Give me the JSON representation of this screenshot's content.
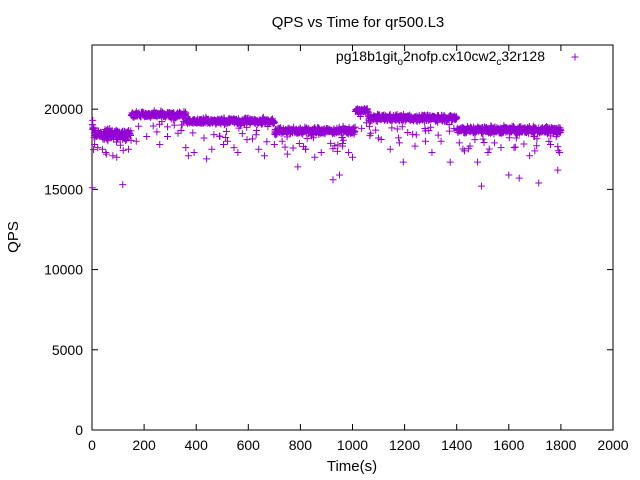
{
  "chart_data": {
    "type": "scatter",
    "title": "QPS vs Time for qr500.L3",
    "xlabel": "Time(s)",
    "ylabel": "QPS",
    "xlim": [
      0,
      2000
    ],
    "ylim": [
      0,
      24000
    ],
    "x_ticks": [
      0,
      200,
      400,
      600,
      800,
      1000,
      1200,
      1400,
      1600,
      1800,
      2000
    ],
    "y_ticks": [
      0,
      5000,
      10000,
      15000,
      20000
    ],
    "grid": false,
    "legend_position": "top-right",
    "marker": "plus",
    "series_color": "#9400d3",
    "series": [
      {
        "name_parts": [
          {
            "text": "pg18b1git",
            "sub": false
          },
          {
            "text": "o",
            "sub": true
          },
          {
            "text": "2nofp.cx10cw2",
            "sub": false
          },
          {
            "text": "c",
            "sub": true
          },
          {
            "text": "32r128",
            "sub": false
          }
        ],
        "x_start": 1,
        "x_step": 1,
        "segments": [
          {
            "from": 1,
            "to": 5,
            "mean": 18900,
            "noise": 350
          },
          {
            "from": 6,
            "to": 150,
            "mean": 18450,
            "noise": 300
          },
          {
            "from": 151,
            "to": 360,
            "mean": 19650,
            "noise": 180
          },
          {
            "from": 361,
            "to": 700,
            "mean": 19250,
            "noise": 180
          },
          {
            "from": 701,
            "to": 1010,
            "mean": 18650,
            "noise": 200
          },
          {
            "from": 1011,
            "to": 1060,
            "mean": 19900,
            "noise": 150
          },
          {
            "from": 1061,
            "to": 1400,
            "mean": 19450,
            "noise": 200
          },
          {
            "from": 1401,
            "to": 1800,
            "mean": 18700,
            "noise": 220
          }
        ],
        "outliers": [
          [
            1,
            15100
          ],
          [
            3,
            19300
          ],
          [
            10,
            17800
          ],
          [
            22,
            17600
          ],
          [
            40,
            17500
          ],
          [
            55,
            17200
          ],
          [
            80,
            17100
          ],
          [
            95,
            17000
          ],
          [
            118,
            15300
          ],
          [
            140,
            17500
          ],
          [
            170,
            18000
          ],
          [
            210,
            18300
          ],
          [
            260,
            17800
          ],
          [
            290,
            18300
          ],
          [
            330,
            18500
          ],
          [
            360,
            17600
          ],
          [
            370,
            17100
          ],
          [
            392,
            17300
          ],
          [
            430,
            18200
          ],
          [
            440,
            16900
          ],
          [
            460,
            17500
          ],
          [
            505,
            17800
          ],
          [
            520,
            18000
          ],
          [
            545,
            17600
          ],
          [
            560,
            17300
          ],
          [
            595,
            18100
          ],
          [
            640,
            17500
          ],
          [
            662,
            17100
          ],
          [
            700,
            17800
          ],
          [
            730,
            18000
          ],
          [
            750,
            17200
          ],
          [
            790,
            16400
          ],
          [
            820,
            17500
          ],
          [
            855,
            17000
          ],
          [
            880,
            17300
          ],
          [
            925,
            15600
          ],
          [
            950,
            15900
          ],
          [
            962,
            17700
          ],
          [
            985,
            17300
          ],
          [
            1000,
            17000
          ],
          [
            1035,
            18800
          ],
          [
            1070,
            18500
          ],
          [
            1100,
            18200
          ],
          [
            1145,
            17500
          ],
          [
            1180,
            17900
          ],
          [
            1195,
            16700
          ],
          [
            1240,
            17700
          ],
          [
            1280,
            18000
          ],
          [
            1305,
            17300
          ],
          [
            1340,
            18000
          ],
          [
            1375,
            16700
          ],
          [
            1410,
            17900
          ],
          [
            1430,
            17400
          ],
          [
            1470,
            18100
          ],
          [
            1480,
            16700
          ],
          [
            1495,
            15200
          ],
          [
            1520,
            17300
          ],
          [
            1545,
            17900
          ],
          [
            1570,
            17600
          ],
          [
            1600,
            15900
          ],
          [
            1620,
            17600
          ],
          [
            1640,
            15700
          ],
          [
            1680,
            17100
          ],
          [
            1700,
            17400
          ],
          [
            1715,
            15400
          ],
          [
            1760,
            17800
          ],
          [
            1788,
            16200
          ],
          [
            1795,
            17300
          ]
        ],
        "seed": 7
      }
    ]
  }
}
